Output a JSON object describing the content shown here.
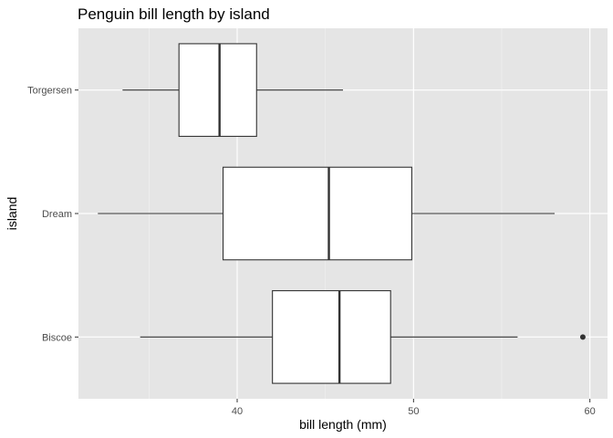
{
  "colors": {
    "panel": "#e5e5e5",
    "grid_major": "#ffffff",
    "grid_minor": "#f2f2f2",
    "box_fill": "#ffffff",
    "box_stroke": "#333333",
    "tick": "#333333"
  },
  "chart_data": {
    "type": "boxplot",
    "orientation": "horizontal",
    "title": "Penguin bill length by island",
    "xlabel": "bill length (mm)",
    "ylabel": "island",
    "xlim": [
      31.0,
      61.0
    ],
    "x_ticks": [
      40,
      50,
      60
    ],
    "x_tick_labels": [
      "40",
      "50",
      "60"
    ],
    "x_minor_ticks": [
      35,
      45,
      55
    ],
    "categories": [
      "Biscoe",
      "Dream",
      "Torgersen"
    ],
    "boxes": [
      {
        "category": "Biscoe",
        "whisker_low": 34.5,
        "q1": 42.0,
        "median": 45.8,
        "q3": 48.7,
        "whisker_high": 55.9,
        "outliers": [
          59.6
        ]
      },
      {
        "category": "Dream",
        "whisker_low": 32.1,
        "q1": 39.2,
        "median": 45.2,
        "q3": 49.9,
        "whisker_high": 58.0,
        "outliers": []
      },
      {
        "category": "Torgersen",
        "whisker_low": 33.5,
        "q1": 36.7,
        "median": 39.0,
        "q3": 41.1,
        "whisker_high": 46.0,
        "outliers": []
      }
    ],
    "grid": true,
    "legend": "none"
  }
}
